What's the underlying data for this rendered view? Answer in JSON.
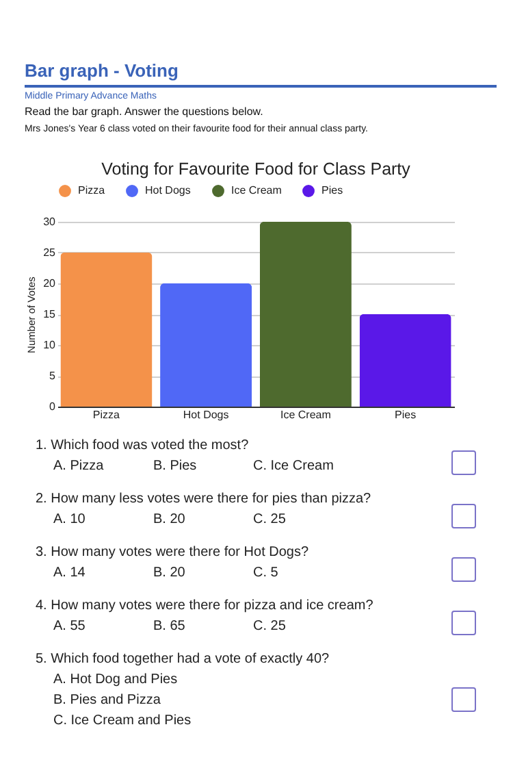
{
  "chart_data": {
    "type": "bar",
    "title": "Voting for Favourite Food for Class Party",
    "ylabel": "Number of Votes",
    "categories": [
      "Pizza",
      "Hot Dogs",
      "Ice Cream",
      "Pies"
    ],
    "stacked": true,
    "series": [
      {
        "name": "Pizza",
        "color": "#f4924a",
        "values": [
          25,
          null,
          null,
          null
        ]
      },
      {
        "name": "Hot Dogs",
        "color": "#5068f6",
        "values": [
          null,
          20,
          null,
          null
        ]
      },
      {
        "name": "Ice Cream",
        "color": "#4e6a2e",
        "values": [
          null,
          null,
          30,
          null
        ]
      },
      {
        "name": "Pies",
        "color": "#5a18e8",
        "values": [
          null,
          null,
          null,
          15
        ]
      }
    ],
    "ylim": [
      0,
      30
    ],
    "yticks": [
      0,
      5,
      10,
      15,
      20,
      25,
      30
    ],
    "grid": "y",
    "legend": "top",
    "annotations": [
      "Bar graph - Voting",
      "Middle Primary Advance Maths",
      "Read the bar graph. Answer the questions below.",
      "Mrs Jones's Year 6 class voted on their favourite food for their annual class party.",
      "1. Which food was voted the most?",
      "A. Pizza",
      "B. Pies",
      "C. Ice Cream",
      "2. How many less votes were there for pies than pizza?",
      "A.  10",
      "B.  20",
      "C.  25",
      "3. How many votes were there for Hot Dogs?",
      "A.  14",
      "B.  20",
      "C.  5",
      "4. How many votes were there for pizza and ice cream?",
      "A.  55",
      "B.  65",
      "C.  25",
      "5. Which food together had a vote of exactly 40?",
      "A. Hot Dog and Pies",
      "B. Pies and Pizza",
      "C. Ice Cream and Pies"
    ]
  }
}
